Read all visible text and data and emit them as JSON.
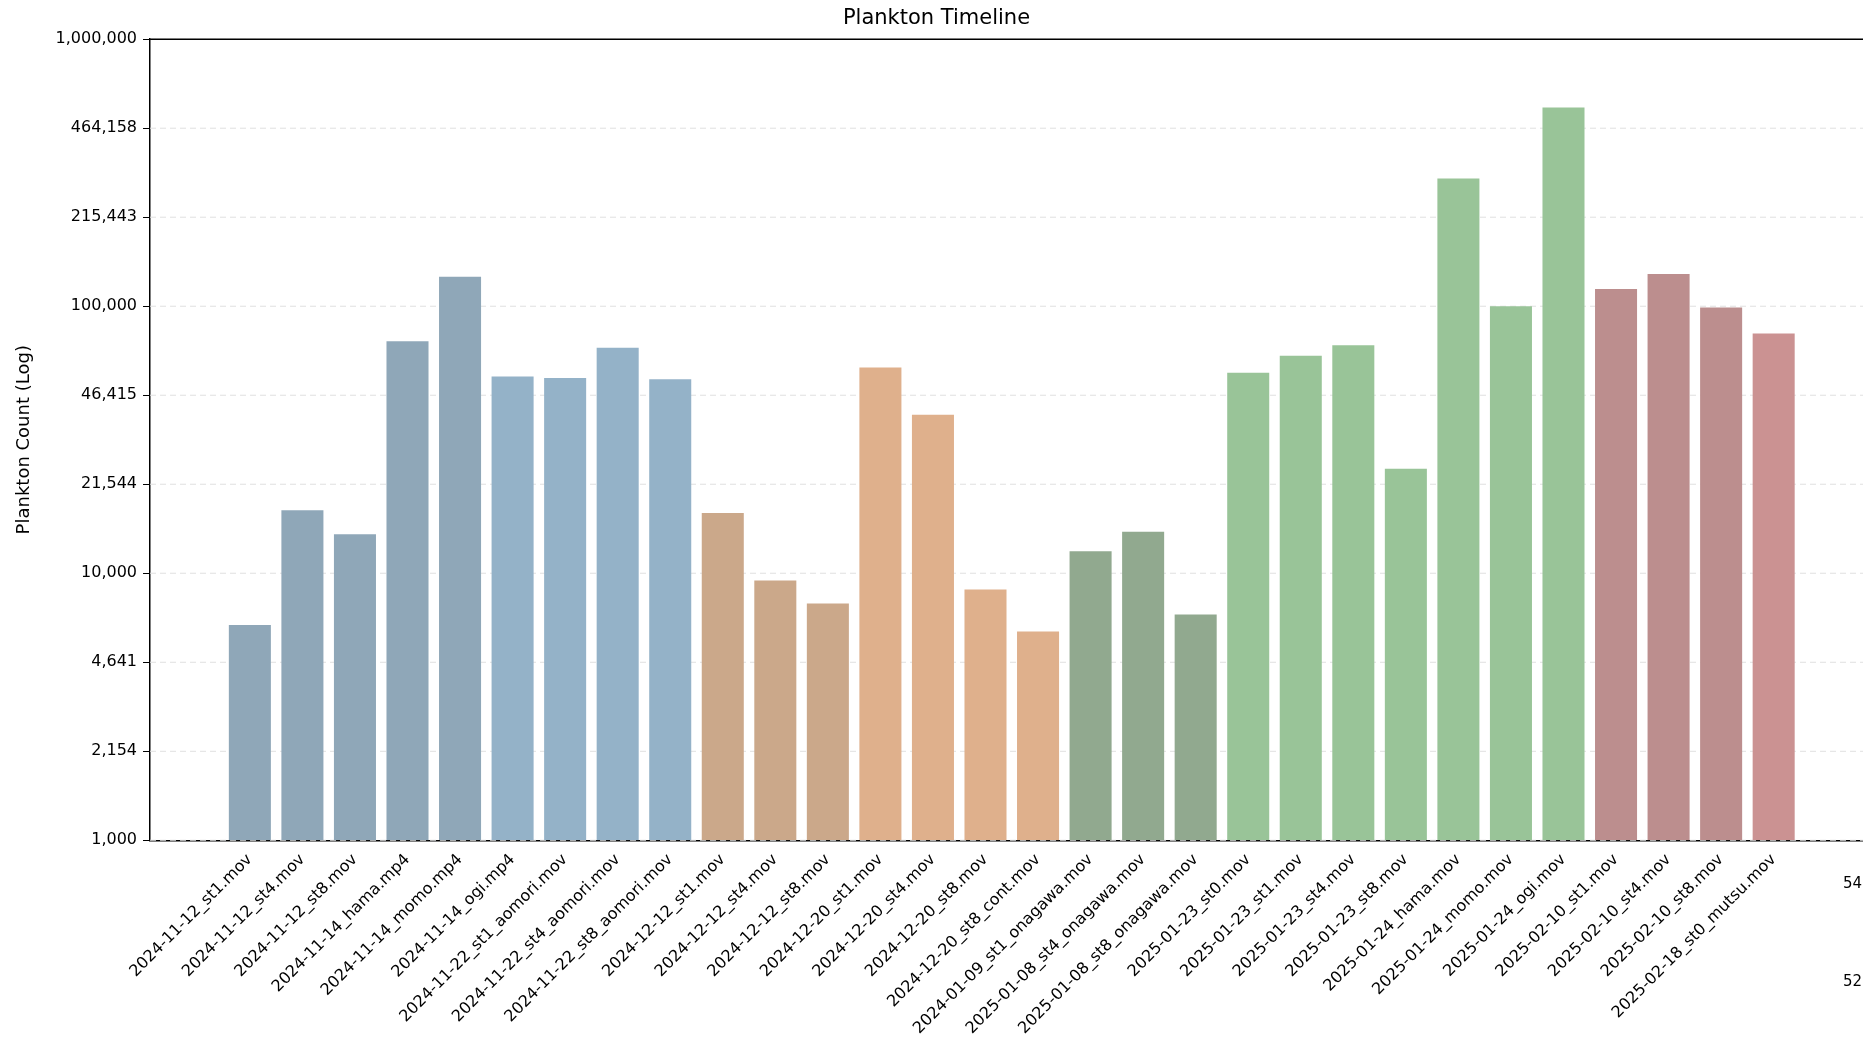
{
  "chart_data": {
    "type": "bar",
    "title": "Plankton Timeline",
    "ylabel": "Plankton Count (Log)",
    "categories": [
      "2024-11-12_st1.mov",
      "2024-11-12_st4.mov",
      "2024-11-12_st8.mov",
      "2024-11-14_hama.mp4",
      "2024-11-14_momo.mp4",
      "2024-11-14_ogi.mp4",
      "2024-11-22_st1_aomori.mov",
      "2024-11-22_st4_aomori.mov",
      "2024-11-22_st8_aomori.mov",
      "2024-12-12_st1.mov",
      "2024-12-12_st4.mov",
      "2024-12-12_st8.mov",
      "2024-12-20_st1.mov",
      "2024-12-20_st4.mov",
      "2024-12-20_st8.mov",
      "2024-12-20_st8_cont.mov",
      "2024-01-09_st1_onagawa.mov",
      "2025-01-08_st4_onagawa.mov",
      "2025-01-08_st8_onagawa.mov",
      "2025-01-23_st0.mov",
      "2025-01-23_st1.mov",
      "2025-01-23_st4.mov",
      "2025-01-23_st8.mov",
      "2025-01-24_hama.mov",
      "2025-01-24_momo.mov",
      "2025-01-24_ogi.mov",
      "2025-02-10_st1.mov",
      "2025-02-10_st4.mov",
      "2025-02-10_st8.mov",
      "2025-02-18_st0_mutsu.mov"
    ],
    "values": [
      6400,
      17200,
      14000,
      74000,
      129000,
      54500,
      53900,
      69900,
      53300,
      16800,
      9400,
      7700,
      59000,
      39200,
      8700,
      6050,
      12100,
      14300,
      7000,
      56400,
      65300,
      71500,
      24600,
      301000,
      100000,
      555000,
      116000,
      132000,
      99000,
      79000
    ],
    "colors": [
      "#8fa7b8",
      "#8fa7b8",
      "#8fa7b8",
      "#8fa7b8",
      "#8fa7b8",
      "#94b2c8",
      "#94b2c8",
      "#94b2c8",
      "#94b2c8",
      "#cba88a",
      "#cba88a",
      "#cba88a",
      "#dfb08c",
      "#dfb08c",
      "#dfb08c",
      "#dfb08c",
      "#91a98f",
      "#91a98f",
      "#91a98f",
      "#99c498",
      "#99c498",
      "#99c498",
      "#99c498",
      "#99c498",
      "#99c498",
      "#99c498",
      "#bc8e8e",
      "#bc8e8e",
      "#bc8e8e",
      "#cb9292"
    ],
    "log": "y",
    "ylim": [
      1000,
      1000000
    ],
    "yticks": [
      {
        "value": 1000,
        "label": "1,000"
      },
      {
        "value": 2154,
        "label": "2,154"
      },
      {
        "value": 4641,
        "label": "4,641"
      },
      {
        "value": 10000,
        "label": "10,000"
      },
      {
        "value": 21544,
        "label": "21,544"
      },
      {
        "value": 46415,
        "label": "46,415"
      },
      {
        "value": 100000,
        "label": "100,000"
      },
      {
        "value": 215443,
        "label": "215,443"
      },
      {
        "value": 464158,
        "label": "464,158"
      },
      {
        "value": 1000000,
        "label": "1,000,000"
      }
    ],
    "grid": "y",
    "legend": false,
    "annotations": [
      "54",
      "52"
    ]
  }
}
